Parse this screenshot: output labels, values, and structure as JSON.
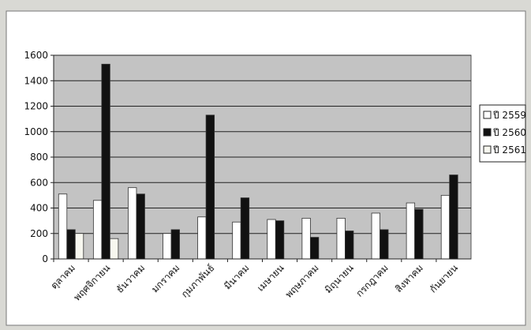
{
  "chart_data": {
    "type": "bar",
    "title": "",
    "xlabel": "",
    "ylabel": "",
    "ylim": [
      0,
      1600
    ],
    "yticks": [
      0,
      200,
      400,
      600,
      800,
      1000,
      1200,
      1400,
      1600
    ],
    "grid": true,
    "legend_position": "right",
    "categories": [
      "ตุลาคม",
      "พฤศจิกายน",
      "ธันวาคม",
      "มกราคม",
      "กุมภาพันธ์",
      "มีนาคม",
      "เมษายน",
      "พฤษภาคม",
      "มิถุนายน",
      "กรกฎาคม",
      "สิงหาคม",
      "กันยายน"
    ],
    "series": [
      {
        "name": "ปี 2559",
        "color": "#ffffff",
        "values": [
          510,
          460,
          560,
          200,
          330,
          290,
          310,
          320,
          320,
          360,
          440,
          500
        ]
      },
      {
        "name": "ปี 2560",
        "color": "#111111",
        "values": [
          230,
          1530,
          510,
          230,
          1130,
          480,
          300,
          170,
          220,
          230,
          390,
          660
        ]
      },
      {
        "name": "ปี 2561",
        "color": "#f7f7ef",
        "values": [
          200,
          160,
          0,
          0,
          0,
          0,
          0,
          0,
          0,
          0,
          0,
          0
        ]
      }
    ]
  }
}
